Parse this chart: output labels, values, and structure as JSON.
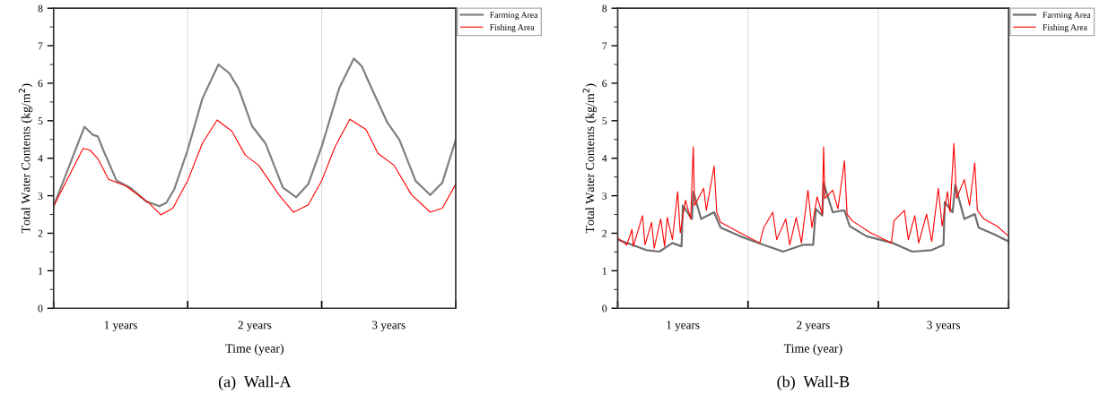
{
  "chart_data": [
    {
      "type": "line",
      "xlabel": "Time (year)",
      "ylabel": "Total Water Contents (kg/m$^{2}$)",
      "annotations": [
        "(a)  Wall-A"
      ],
      "xlim": [
        0,
        3
      ],
      "xticks": [
        {
          "value": 0,
          "label": null
        },
        {
          "value": 0.5,
          "label": "1 years"
        },
        {
          "value": 1,
          "label": null
        },
        {
          "value": 1.5,
          "label": "2 years"
        },
        {
          "value": 2,
          "label": null
        },
        {
          "value": 2.5,
          "label": "3 years"
        },
        {
          "value": 3,
          "label": null
        }
      ],
      "ylim": [
        0,
        8
      ],
      "yticks": [
        0,
        1,
        2,
        3,
        4,
        5,
        6,
        7,
        8
      ],
      "grid": "x",
      "legend": "top right",
      "marker": "none",
      "line_style": "solid",
      "series": [
        {
          "name": "Farming Area",
          "color": "#808080",
          "x": [
            0,
            0.23,
            0.29,
            0.33,
            0.37,
            0.47,
            0.57,
            0.69,
            0.79,
            0.84,
            0.9,
            1.0,
            1.11,
            1.23,
            1.31,
            1.38,
            1.48,
            1.58,
            1.71,
            1.81,
            1.9,
            2.0,
            2.13,
            2.24,
            2.3,
            2.35,
            2.49,
            2.58,
            2.7,
            2.81,
            2.9,
            3.0
          ],
          "values": [
            2.72,
            4.84,
            4.63,
            4.58,
            4.22,
            3.4,
            3.22,
            2.85,
            2.72,
            2.81,
            3.17,
            4.22,
            5.59,
            6.5,
            6.27,
            5.86,
            4.86,
            4.4,
            3.22,
            2.96,
            3.31,
            4.31,
            5.86,
            6.66,
            6.45,
            6.04,
            4.95,
            4.49,
            3.4,
            3.02,
            3.35,
            4.49
          ]
        },
        {
          "name": "Fishing Area",
          "color": "#ff0000",
          "x": [
            0,
            0.22,
            0.27,
            0.33,
            0.41,
            0.54,
            0.71,
            0.8,
            0.89,
            1.0,
            1.11,
            1.22,
            1.33,
            1.43,
            1.53,
            1.68,
            1.79,
            1.9,
            2.0,
            2.1,
            2.21,
            2.33,
            2.42,
            2.54,
            2.67,
            2.81,
            2.9,
            3.0
          ],
          "values": [
            2.72,
            4.26,
            4.22,
            3.99,
            3.44,
            3.26,
            2.81,
            2.49,
            2.67,
            3.4,
            4.4,
            5.02,
            4.72,
            4.08,
            3.81,
            3.03,
            2.56,
            2.76,
            3.4,
            4.31,
            5.04,
            4.77,
            4.13,
            3.81,
            3.03,
            2.56,
            2.67,
            3.31
          ]
        }
      ]
    },
    {
      "type": "line",
      "xlabel": "Time (year)",
      "ylabel": "Total Water Contents (kg/m$^{2}$)",
      "annotations": [
        "(b)  Wall-B"
      ],
      "xlim": [
        0,
        3
      ],
      "xticks": [
        {
          "value": 0,
          "label": null
        },
        {
          "value": 0.5,
          "label": "1 years"
        },
        {
          "value": 1,
          "label": null
        },
        {
          "value": 1.5,
          "label": "2 years"
        },
        {
          "value": 2,
          "label": null
        },
        {
          "value": 2.5,
          "label": "3 years"
        },
        {
          "value": 3,
          "label": null
        }
      ],
      "ylim": [
        0,
        8
      ],
      "yticks": [
        0,
        1,
        2,
        3,
        4,
        5,
        6,
        7,
        8
      ],
      "grid": "x",
      "legend": "top right",
      "marker": "none",
      "line_style": "solid",
      "series": [
        {
          "name": "Farming Area",
          "color": "#707070",
          "x": [
            0,
            0.22,
            0.32,
            0.42,
            0.49,
            0.5,
            0.57,
            0.58,
            0.64,
            0.74,
            0.79,
            0.94,
            1.12,
            1.27,
            1.42,
            1.5,
            1.52,
            1.57,
            1.58,
            1.65,
            1.74,
            1.78,
            1.91,
            2.11,
            2.26,
            2.41,
            2.5,
            2.51,
            2.57,
            2.59,
            2.66,
            2.74,
            2.77,
            2.89,
            3.0
          ],
          "values": [
            1.83,
            1.55,
            1.51,
            1.74,
            1.65,
            2.74,
            2.38,
            3.11,
            2.38,
            2.56,
            2.15,
            1.92,
            1.69,
            1.51,
            1.69,
            1.69,
            2.65,
            2.47,
            3.34,
            2.56,
            2.61,
            2.19,
            1.92,
            1.74,
            1.51,
            1.55,
            1.69,
            2.83,
            2.56,
            3.29,
            2.38,
            2.51,
            2.15,
            1.97,
            1.78
          ]
        },
        {
          "name": "Fishing Area",
          "color": "#ff0000",
          "x": [
            0,
            0.07,
            0.11,
            0.12,
            0.19,
            0.21,
            0.26,
            0.28,
            0.33,
            0.36,
            0.38,
            0.42,
            0.46,
            0.48,
            0.52,
            0.56,
            0.58,
            0.59,
            0.66,
            0.68,
            0.74,
            0.76,
            0.79,
            0.94,
            1.09,
            1.12,
            1.19,
            1.22,
            1.29,
            1.32,
            1.37,
            1.41,
            1.46,
            1.49,
            1.53,
            1.57,
            1.58,
            1.59,
            1.65,
            1.69,
            1.74,
            1.76,
            1.8,
            1.94,
            2.1,
            2.12,
            2.2,
            2.23,
            2.28,
            2.31,
            2.37,
            2.41,
            2.46,
            2.49,
            2.53,
            2.55,
            2.58,
            2.6,
            2.66,
            2.7,
            2.74,
            2.76,
            2.81,
            2.91,
            3.0
          ],
          "values": [
            1.87,
            1.69,
            2.1,
            1.65,
            2.47,
            1.69,
            2.29,
            1.6,
            2.38,
            1.65,
            2.42,
            1.83,
            3.11,
            2.01,
            2.88,
            2.38,
            4.31,
            2.74,
            3.2,
            2.61,
            3.79,
            2.56,
            2.29,
            2.01,
            1.74,
            2.15,
            2.56,
            1.83,
            2.38,
            1.69,
            2.42,
            1.74,
            3.15,
            2.15,
            2.97,
            2.51,
            4.31,
            2.93,
            3.15,
            2.65,
            3.93,
            2.51,
            2.33,
            2.01,
            1.74,
            2.33,
            2.61,
            1.83,
            2.47,
            1.74,
            2.51,
            1.78,
            3.2,
            2.19,
            3.11,
            2.56,
            4.39,
            2.93,
            3.43,
            2.74,
            3.88,
            2.61,
            2.38,
            2.19,
            1.92
          ]
        }
      ]
    }
  ]
}
